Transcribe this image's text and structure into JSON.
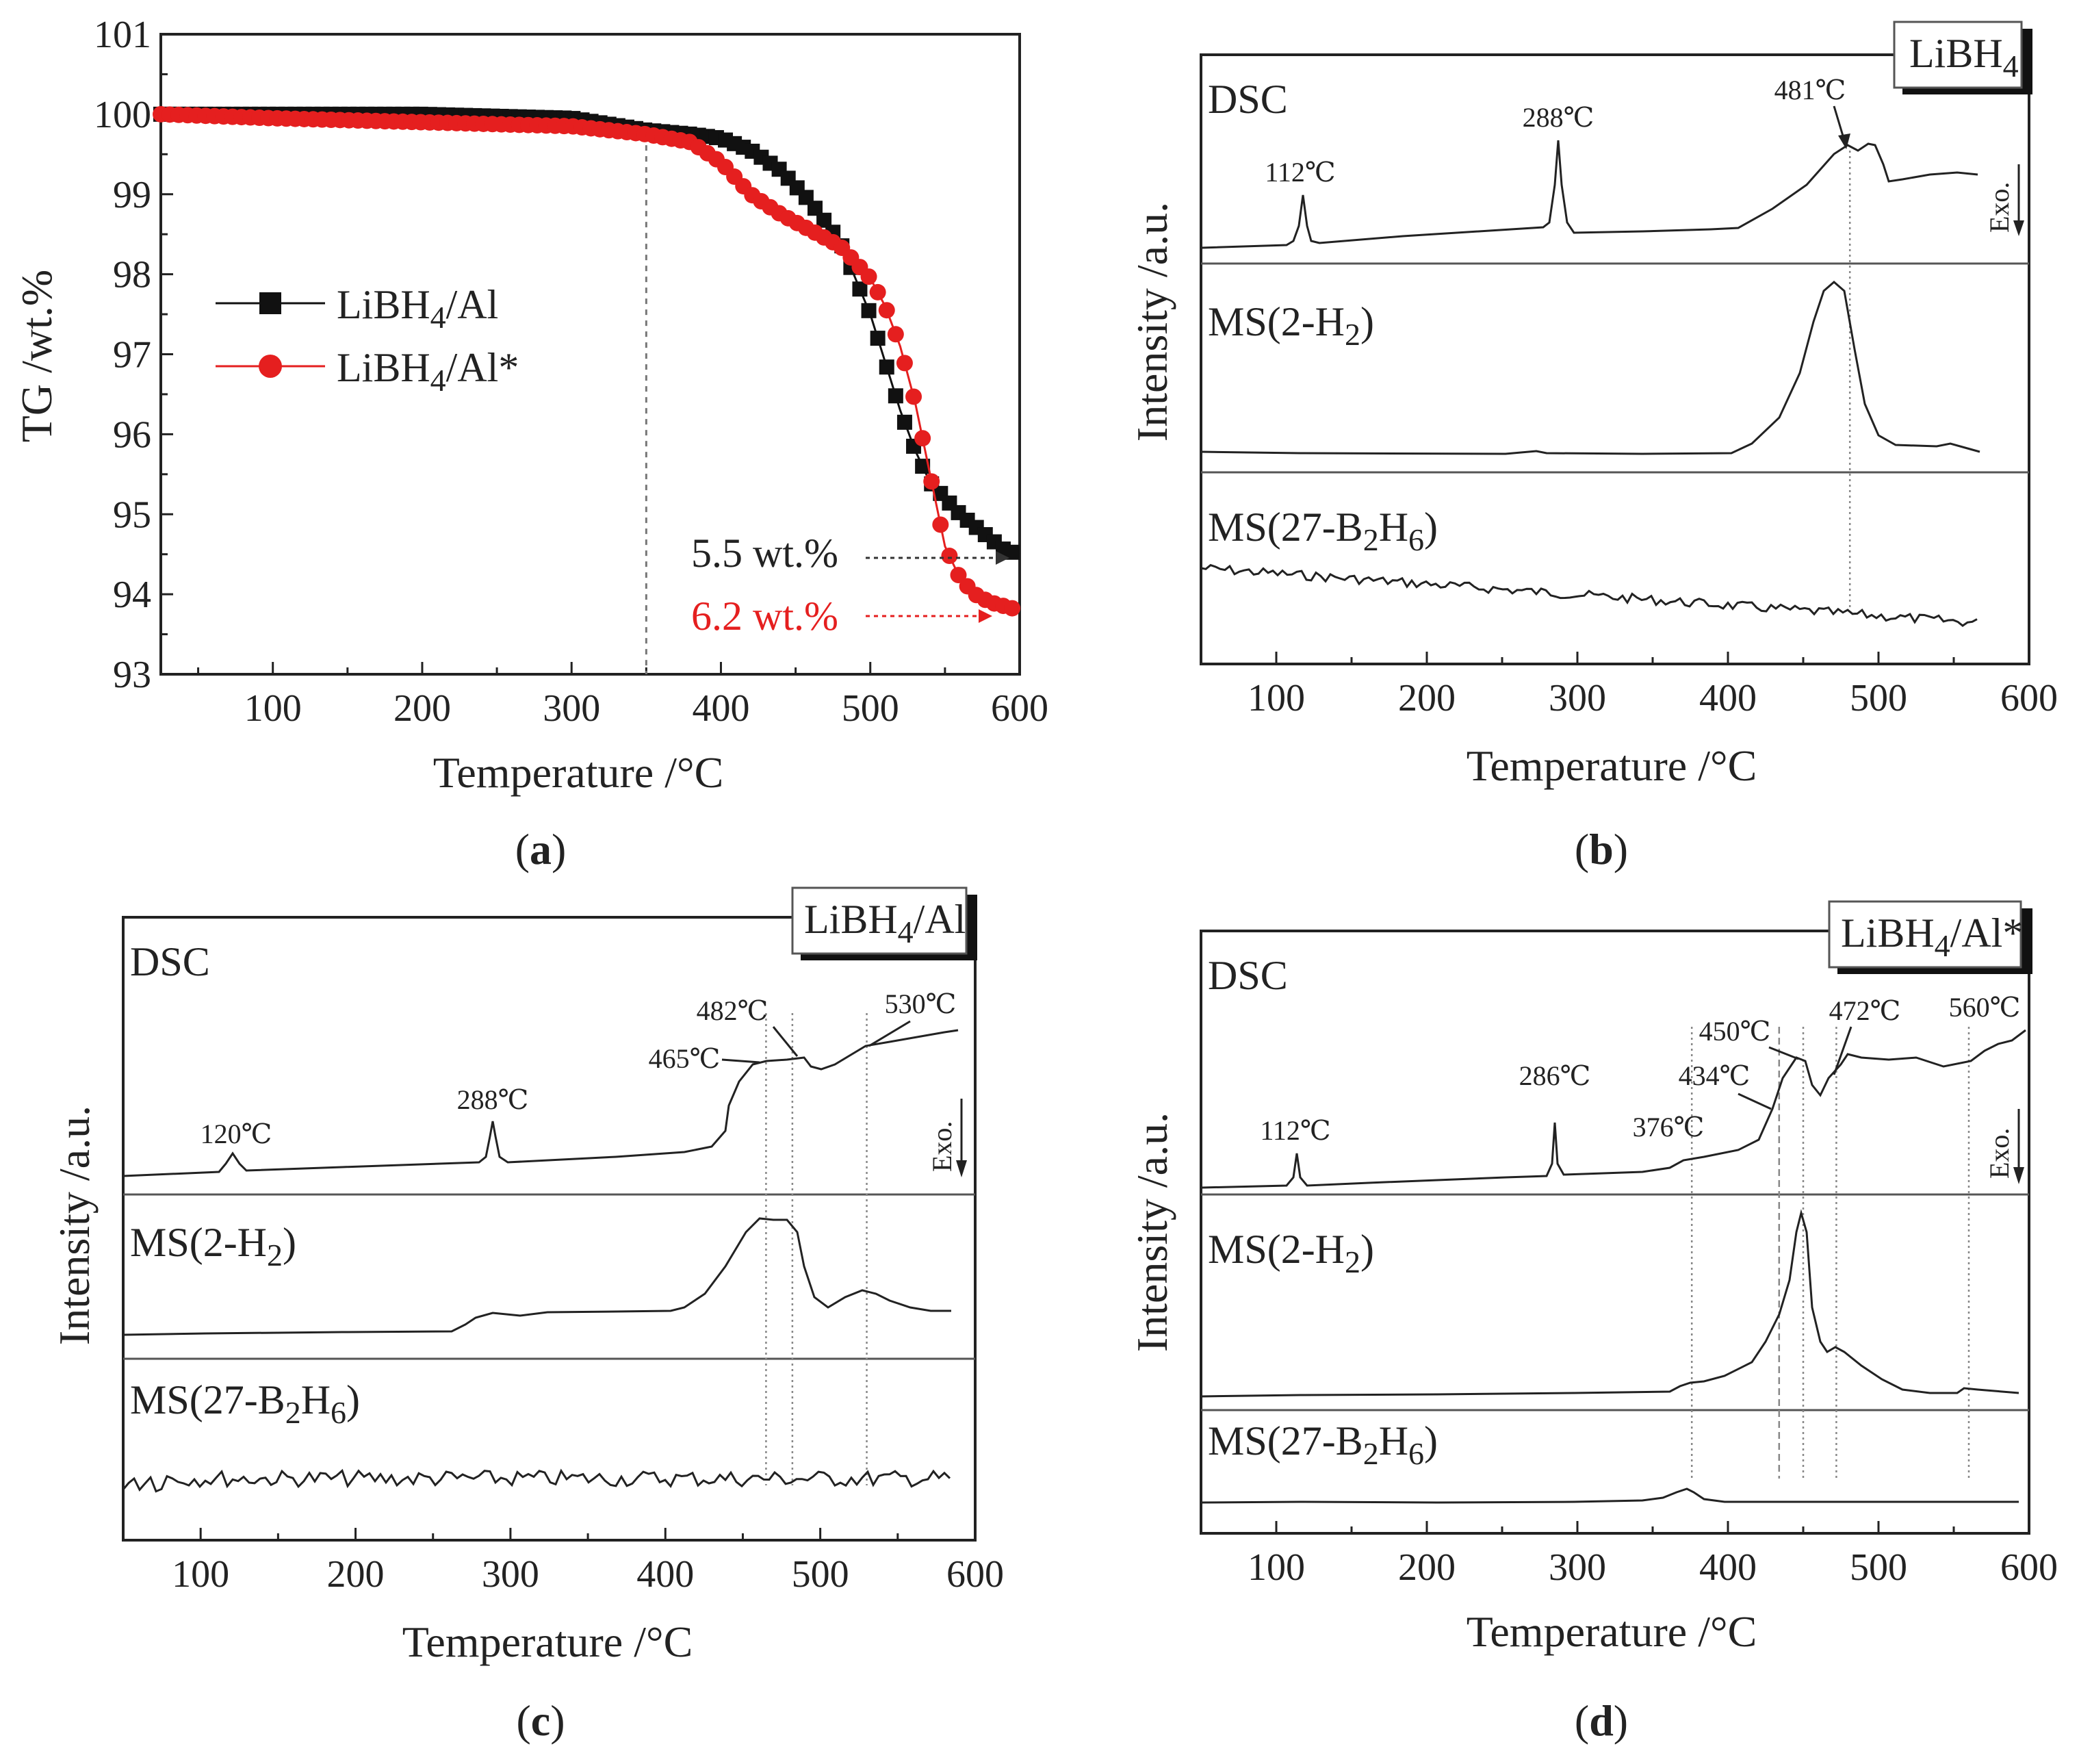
{
  "figure": {
    "panel_labels": [
      "a",
      "b",
      "c",
      "d"
    ]
  },
  "colors": {
    "black_series": "#111111",
    "red_series": "#e51f1f",
    "axis": "#222222",
    "guide": "#888888"
  },
  "chart_data": [
    {
      "id": "a",
      "type": "line",
      "title": "",
      "xlabel": "Temperature /°C",
      "ylabel": "TG /wt.%",
      "xlim": [
        25,
        600
      ],
      "ylim": [
        93,
        101
      ],
      "xticks": [
        100,
        200,
        300,
        400,
        500,
        600
      ],
      "yticks": [
        93,
        94,
        95,
        96,
        97,
        98,
        99,
        100,
        101
      ],
      "legend_position": "center-left",
      "series": [
        {
          "name": "LiBH4/Al",
          "label_main": "LiBH",
          "label_sub": "4",
          "label_tail": "/Al",
          "marker": "square",
          "color": "#111111",
          "x": [
            25,
            100,
            200,
            300,
            350,
            380,
            400,
            420,
            440,
            460,
            480,
            500,
            510,
            520,
            530,
            540,
            550,
            560,
            570,
            580,
            590,
            600
          ],
          "y": [
            100.0,
            100.0,
            100.0,
            99.95,
            99.8,
            99.75,
            99.7,
            99.55,
            99.3,
            98.9,
            98.4,
            97.5,
            96.9,
            96.3,
            95.8,
            95.4,
            95.2,
            95.0,
            94.85,
            94.7,
            94.55,
            94.5
          ]
        },
        {
          "name": "LiBH4/Al*",
          "label_main": "LiBH",
          "label_sub": "4",
          "label_tail": "/Al*",
          "marker": "circle",
          "color": "#e51f1f",
          "x": [
            25,
            100,
            200,
            300,
            350,
            380,
            400,
            420,
            440,
            460,
            480,
            500,
            510,
            520,
            530,
            540,
            550,
            560,
            570,
            580,
            590,
            600
          ],
          "y": [
            100.0,
            99.95,
            99.9,
            99.85,
            99.75,
            99.65,
            99.4,
            99.0,
            98.75,
            98.55,
            98.35,
            97.95,
            97.6,
            97.1,
            96.4,
            95.5,
            94.6,
            94.2,
            94.0,
            93.9,
            93.85,
            93.8
          ]
        }
      ],
      "annotations": [
        {
          "text": "5.5 wt.%",
          "color": "#111111",
          "at_x": 590,
          "at_y": 94.5
        },
        {
          "text": "6.2 wt.%",
          "color": "#e51f1f",
          "at_x": 590,
          "at_y": 93.8
        }
      ],
      "vertical_guide_x": 350
    },
    {
      "id": "b",
      "type": "line",
      "sample": {
        "main": "LiBH",
        "sub": "4",
        "tail": ""
      },
      "xlabel": "Temperature /°C",
      "ylabel": "Intensity /a.u.",
      "xlim": [
        50,
        600
      ],
      "xticks": [
        100,
        200,
        300,
        400,
        500,
        600
      ],
      "exo_label": "Exo.",
      "tracks": [
        {
          "name": "DSC",
          "label_main": "DSC",
          "label_sub": "",
          "label_mid": "",
          "label_sub2": "",
          "label_tail": "",
          "peaks": [
            {
              "x": 112,
              "label": "112℃"
            },
            {
              "x": 288,
              "label": "288℃"
            },
            {
              "x": 481,
              "label": "481℃"
            }
          ]
        },
        {
          "name": "MS(2-H2)",
          "label_main": "MS(2-H",
          "label_sub": "2",
          "label_mid": "",
          "label_sub2": "",
          "label_tail": ")"
        },
        {
          "name": "MS(27-B2H6)",
          "label_main": "MS(27-B",
          "label_sub": "2",
          "label_mid": "H",
          "label_sub2": "6",
          "label_tail": ")"
        }
      ],
      "guides_x": [
        481
      ]
    },
    {
      "id": "c",
      "type": "line",
      "sample": {
        "main": "LiBH",
        "sub": "4",
        "tail": "/Al"
      },
      "xlabel": "Temperature /°C",
      "ylabel": "Intensity /a.u.",
      "xlim": [
        50,
        600
      ],
      "xticks": [
        100,
        200,
        300,
        400,
        500,
        600
      ],
      "exo_label": "Exo.",
      "tracks": [
        {
          "name": "DSC",
          "label_main": "DSC",
          "label_sub": "",
          "label_mid": "",
          "label_sub2": "",
          "label_tail": "",
          "peaks": [
            {
              "x": 120,
              "label": "120℃"
            },
            {
              "x": 288,
              "label": "288℃"
            },
            {
              "x": 465,
              "label": "465℃"
            },
            {
              "x": 482,
              "label": "482℃"
            },
            {
              "x": 530,
              "label": "530℃"
            }
          ]
        },
        {
          "name": "MS(2-H2)",
          "label_main": "MS(2-H",
          "label_sub": "2",
          "label_mid": "",
          "label_sub2": "",
          "label_tail": ")"
        },
        {
          "name": "MS(27-B2H6)",
          "label_main": "MS(27-B",
          "label_sub": "2",
          "label_mid": "H",
          "label_sub2": "6",
          "label_tail": ")"
        }
      ],
      "guides_x": [
        465,
        482,
        530
      ]
    },
    {
      "id": "d",
      "type": "line",
      "sample": {
        "main": "LiBH",
        "sub": "4",
        "tail": "/Al*"
      },
      "xlabel": "Temperature /°C",
      "ylabel": "Intensity /a.u.",
      "xlim": [
        50,
        600
      ],
      "xticks": [
        100,
        200,
        300,
        400,
        500,
        600
      ],
      "exo_label": "Exo.",
      "tracks": [
        {
          "name": "DSC",
          "label_main": "DSC",
          "label_sub": "",
          "label_mid": "",
          "label_sub2": "",
          "label_tail": "",
          "peaks": [
            {
              "x": 112,
              "label": "112℃"
            },
            {
              "x": 286,
              "label": "286℃"
            },
            {
              "x": 376,
              "label": "376℃"
            },
            {
              "x": 434,
              "label": "434℃"
            },
            {
              "x": 450,
              "label": "450℃"
            },
            {
              "x": 472,
              "label": "472℃"
            },
            {
              "x": 560,
              "label": "560℃"
            }
          ]
        },
        {
          "name": "MS(2-H2)",
          "label_main": "MS(2-H",
          "label_sub": "2",
          "label_mid": "",
          "label_sub2": "",
          "label_tail": ")"
        },
        {
          "name": "MS(27-B2H6)",
          "label_main": "MS(27-B",
          "label_sub": "2",
          "label_mid": "H",
          "label_sub2": "6",
          "label_tail": ")"
        }
      ],
      "guides_x": [
        376,
        434,
        450,
        472,
        560
      ]
    }
  ]
}
